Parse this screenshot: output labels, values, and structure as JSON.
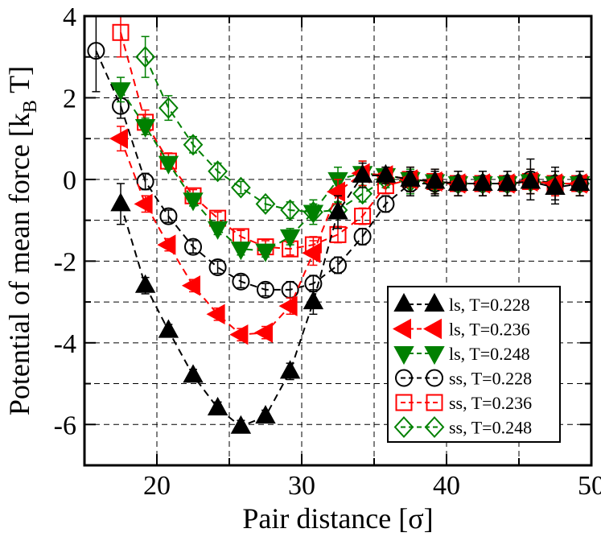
{
  "chart_data": {
    "type": "line",
    "xlabel": "Pair distance [σ]",
    "ylabel": "Potential of mean force [k_B T]",
    "xlim": [
      15,
      50
    ],
    "ylim": [
      -7,
      4
    ],
    "x_ticks": [
      20,
      30,
      40,
      50
    ],
    "y_ticks": [
      -6,
      -4,
      -2,
      0,
      2,
      4
    ],
    "x_tick_labels": [
      "20",
      "30",
      "40",
      "50"
    ],
    "y_tick_labels": [
      "-6",
      "-4",
      "-2",
      "0",
      "2",
      "4"
    ],
    "grid": true,
    "legend_position": "bottom-right",
    "series": [
      {
        "name": "ls, T=0.228",
        "color": "#000000",
        "marker": "triangle-up",
        "filled": true,
        "x": [
          17.5,
          19.2,
          20.8,
          22.5,
          24.2,
          25.8,
          27.5,
          29.2,
          30.8,
          32.5,
          34.2,
          35.8,
          37.5,
          39.2,
          40.8,
          42.5,
          44.2,
          45.8,
          47.5,
          49.2
        ],
        "y": [
          -0.6,
          -2.6,
          -3.7,
          -4.8,
          -5.6,
          -6.05,
          -5.8,
          -4.7,
          -3.0,
          -0.8,
          0.1,
          0.1,
          0.0,
          -0.05,
          -0.1,
          -0.1,
          -0.1,
          -0.05,
          -0.2,
          -0.1
        ],
        "err": [
          0.5,
          0.2,
          0.15,
          0.15,
          0.15,
          0.15,
          0.15,
          0.2,
          0.3,
          0.4,
          0.3,
          0.2,
          0.3,
          0.3,
          0.3,
          0.3,
          0.3,
          0.3,
          0.4,
          0.3
        ]
      },
      {
        "name": "ls, T=0.236",
        "color": "#ff0000",
        "marker": "triangle-left",
        "filled": true,
        "x": [
          17.5,
          19.2,
          20.8,
          22.5,
          24.2,
          25.8,
          27.5,
          29.2,
          30.8,
          32.5,
          34.2,
          35.8,
          37.5,
          39.2,
          40.8,
          42.5,
          44.2,
          45.8,
          47.5,
          49.2
        ],
        "y": [
          1.0,
          -0.6,
          -1.6,
          -2.6,
          -3.3,
          -3.8,
          -3.75,
          -3.1,
          -1.8,
          -0.3,
          0.15,
          0.1,
          0.0,
          -0.05,
          -0.1,
          -0.1,
          -0.1,
          -0.05,
          -0.1,
          -0.1
        ],
        "err": [
          0.3,
          0.2,
          0.15,
          0.15,
          0.15,
          0.15,
          0.15,
          0.2,
          0.3,
          0.3,
          0.3,
          0.2,
          0.3,
          0.3,
          0.3,
          0.3,
          0.3,
          0.3,
          0.3,
          0.3
        ]
      },
      {
        "name": "ls, T=0.248",
        "color": "#008000",
        "marker": "triangle-down",
        "filled": true,
        "x": [
          17.5,
          19.2,
          20.8,
          22.5,
          24.2,
          25.8,
          27.5,
          29.2,
          30.8,
          32.5,
          34.2,
          35.8,
          37.5,
          39.2,
          40.8,
          42.5,
          44.2,
          45.8,
          47.5,
          49.2
        ],
        "y": [
          2.2,
          1.3,
          0.4,
          -0.5,
          -1.2,
          -1.7,
          -1.75,
          -1.4,
          -0.8,
          0.0,
          0.15,
          0.1,
          0.0,
          -0.05,
          -0.1,
          -0.1,
          -0.1,
          -0.05,
          -0.1,
          -0.1
        ],
        "err": [
          0.3,
          0.2,
          0.15,
          0.15,
          0.15,
          0.15,
          0.15,
          0.2,
          0.3,
          0.3,
          0.3,
          0.2,
          0.3,
          0.3,
          0.3,
          0.3,
          0.3,
          0.3,
          0.3,
          0.3
        ]
      },
      {
        "name": "ss, T=0.228",
        "color": "#000000",
        "marker": "circle",
        "filled": false,
        "x": [
          15.8,
          17.5,
          19.2,
          20.8,
          22.5,
          24.2,
          25.8,
          27.5,
          29.2,
          30.8,
          32.5,
          34.2,
          35.8,
          37.5,
          39.2,
          40.8,
          42.5,
          44.2,
          45.8,
          47.5,
          49.2
        ],
        "y": [
          3.15,
          1.8,
          -0.05,
          -0.9,
          -1.65,
          -2.15,
          -2.5,
          -2.7,
          -2.7,
          -2.55,
          -2.1,
          -1.4,
          -0.6,
          -0.1,
          -0.1,
          -0.1,
          -0.1,
          -0.1,
          0.0,
          -0.1,
          -0.1
        ],
        "err": [
          1.0,
          0.3,
          0.2,
          0.15,
          0.15,
          0.15,
          0.15,
          0.15,
          0.2,
          0.2,
          0.2,
          0.2,
          0.2,
          0.3,
          0.3,
          0.3,
          0.3,
          0.3,
          0.5,
          0.4,
          0.3
        ]
      },
      {
        "name": "ss, T=0.236",
        "color": "#ff0000",
        "marker": "square",
        "filled": false,
        "x": [
          17.5,
          19.2,
          20.8,
          22.5,
          24.2,
          25.8,
          27.5,
          29.2,
          30.8,
          32.5,
          34.2,
          35.8,
          37.5,
          39.2,
          40.8,
          42.5,
          44.2,
          45.8,
          47.5,
          49.2
        ],
        "y": [
          3.6,
          1.4,
          0.45,
          -0.4,
          -0.95,
          -1.4,
          -1.65,
          -1.7,
          -1.6,
          -1.35,
          -0.9,
          -0.15,
          0.0,
          -0.05,
          -0.1,
          -0.1,
          -0.1,
          -0.05,
          -0.1,
          -0.1
        ],
        "err": [
          0.6,
          0.3,
          0.2,
          0.15,
          0.15,
          0.15,
          0.15,
          0.15,
          0.2,
          0.2,
          0.2,
          0.2,
          0.3,
          0.3,
          0.3,
          0.3,
          0.3,
          0.3,
          0.3,
          0.3
        ]
      },
      {
        "name": "ss, T=0.248",
        "color": "#008000",
        "marker": "diamond",
        "filled": false,
        "x": [
          19.2,
          20.8,
          22.5,
          24.2,
          25.8,
          27.5,
          29.2,
          30.8,
          32.5,
          34.2,
          35.8,
          37.5,
          39.2,
          40.8,
          42.5,
          44.2,
          45.8,
          47.5,
          49.2
        ],
        "y": [
          3.0,
          1.75,
          0.85,
          0.2,
          -0.2,
          -0.6,
          -0.75,
          -0.8,
          -0.75,
          -0.35,
          0.0,
          -0.05,
          -0.1,
          -0.1,
          -0.1,
          -0.1,
          -0.05,
          -0.1,
          -0.1
        ],
        "err": [
          0.5,
          0.3,
          0.2,
          0.2,
          0.15,
          0.15,
          0.2,
          0.2,
          0.2,
          0.2,
          0.2,
          0.3,
          0.3,
          0.3,
          0.3,
          0.3,
          0.3,
          0.3,
          0.3
        ]
      }
    ]
  }
}
